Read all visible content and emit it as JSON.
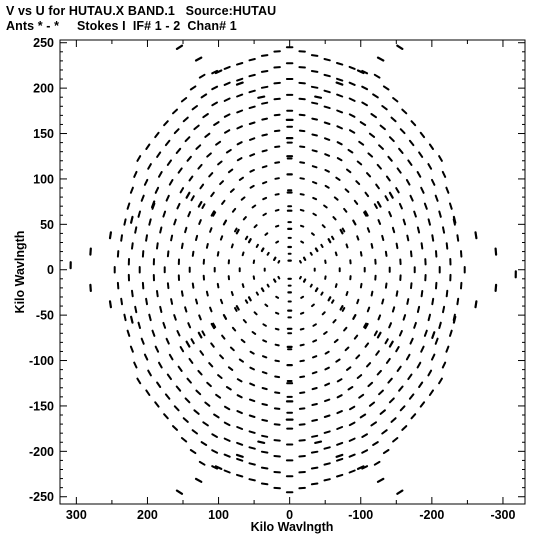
{
  "header": {
    "line1": "V vs U for HUTAU.X BAND.1   Source:HUTAU",
    "line2": "Ants * - *     Stokes I  IF# 1 - 2  Chan# 1"
  },
  "chart_data": {
    "type": "scatter",
    "title": "V vs U for HUTAU.X BAND.1   Source:HUTAU",
    "subtitle": "Ants * - *     Stokes I  IF# 1 - 2  Chan# 1",
    "xlabel": "Kilo Wavlngth",
    "ylabel": "Kilo Wavlngth",
    "xlim": [
      323,
      -331
    ],
    "ylim": [
      -258,
      253
    ],
    "x_reversed": true,
    "xticks": [
      300,
      200,
      100,
      0,
      -100,
      -200,
      -300
    ],
    "yticks": [
      250,
      200,
      150,
      100,
      50,
      0,
      -50,
      -100,
      -150,
      -200,
      -250
    ],
    "grid": false,
    "marker": "short dash segments",
    "color": "#000000",
    "pattern": "six-armed snowflake (hexagonal) uv-coverage",
    "arm_angles_deg": [
      90,
      30,
      -30,
      -90,
      -150,
      150
    ],
    "arm_tip_radius": 245,
    "rings": 14,
    "series": [
      {
        "points": [
          [
            0,
            165
          ],
          [
            0,
            145
          ],
          [
            0,
            125
          ],
          [
            0,
            105
          ],
          [
            0,
            85
          ],
          [
            0,
            65
          ],
          [
            0,
            45
          ],
          [
            0,
            25
          ],
          [
            0,
            10
          ],
          [
            0,
            -10
          ],
          [
            0,
            -25
          ],
          [
            0,
            -45
          ],
          [
            0,
            -65
          ],
          [
            0,
            -85
          ],
          [
            0,
            -105
          ],
          [
            0,
            -125
          ],
          [
            0,
            -145
          ],
          [
            0,
            -165
          ],
          [
            143,
            82
          ],
          [
            126,
            72
          ],
          [
            108,
            62
          ],
          [
            91,
            52
          ],
          [
            73,
            42
          ],
          [
            56,
            32
          ],
          [
            38,
            22
          ],
          [
            21,
            12
          ],
          [
            -143,
            -82
          ],
          [
            -126,
            -72
          ],
          [
            -108,
            -62
          ],
          [
            -91,
            -52
          ],
          [
            -73,
            -42
          ],
          [
            -56,
            -32
          ],
          [
            -38,
            -22
          ],
          [
            -21,
            -12
          ],
          [
            143,
            -82
          ],
          [
            126,
            -72
          ],
          [
            108,
            -62
          ],
          [
            91,
            -52
          ],
          [
            73,
            -42
          ],
          [
            56,
            -32
          ],
          [
            38,
            -22
          ],
          [
            21,
            -12
          ],
          [
            -143,
            82
          ],
          [
            -126,
            72
          ],
          [
            -108,
            62
          ],
          [
            -91,
            52
          ],
          [
            -73,
            42
          ],
          [
            -56,
            32
          ],
          [
            -38,
            22
          ],
          [
            -21,
            12
          ],
          [
            155,
            245
          ],
          [
            128,
            232
          ],
          [
            100,
            218
          ],
          [
            70,
            205
          ],
          [
            40,
            190
          ],
          [
            -155,
            245
          ],
          [
            -128,
            232
          ],
          [
            -100,
            218
          ],
          [
            -70,
            205
          ],
          [
            -40,
            190
          ],
          [
            155,
            -245
          ],
          [
            128,
            -232
          ],
          [
            100,
            -218
          ],
          [
            70,
            -205
          ],
          [
            40,
            -190
          ],
          [
            -155,
            -245
          ],
          [
            -128,
            -232
          ],
          [
            -100,
            -218
          ],
          [
            -70,
            -205
          ],
          [
            -40,
            -190
          ],
          [
            308,
            5
          ],
          [
            280,
            20
          ],
          [
            252,
            38
          ],
          [
            222,
            55
          ],
          [
            192,
            72
          ],
          [
            -318,
            -5
          ],
          [
            -290,
            -20
          ],
          [
            -262,
            -38
          ],
          [
            -232,
            -55
          ],
          [
            -202,
            -72
          ],
          [
            280,
            -20
          ],
          [
            252,
            -38
          ],
          [
            222,
            -55
          ],
          [
            -290,
            20
          ],
          [
            -262,
            38
          ],
          [
            -232,
            55
          ]
        ]
      }
    ]
  }
}
